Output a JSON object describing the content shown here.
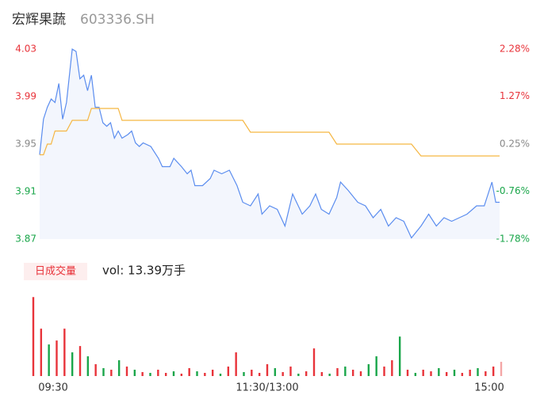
{
  "header": {
    "name": "宏辉果蔬",
    "code": "603336.SH"
  },
  "chart_data": [
    {
      "type": "line",
      "x": [
        0,
        2,
        4,
        6,
        8,
        10,
        12,
        14,
        17,
        19,
        21,
        23,
        25,
        27,
        29,
        31,
        33,
        35,
        37,
        39,
        41,
        43,
        46,
        48,
        50,
        52,
        54,
        58,
        62,
        64,
        68,
        70,
        74,
        77,
        79,
        81,
        85,
        89,
        91,
        95,
        99,
        103,
        106,
        110,
        114,
        116,
        120,
        124,
        128,
        132,
        137,
        141,
        144,
        147,
        151,
        155,
        157,
        161,
        166,
        170,
        174,
        178,
        182,
        186,
        190,
        194,
        199,
        203,
        207,
        211,
        215,
        219,
        223,
        228,
        232,
        236,
        238,
        240
      ],
      "xlim": [
        0,
        240
      ],
      "series": [
        {
          "color": "#5b8def",
          "fill": "#f3f6fd",
          "values": [
            3.941,
            3.971,
            3.981,
            3.988,
            3.985,
            4.001,
            3.971,
            3.985,
            4.03,
            4.028,
            4.005,
            4.008,
            3.995,
            4.008,
            3.981,
            3.981,
            3.968,
            3.965,
            3.968,
            3.955,
            3.961,
            3.955,
            3.958,
            3.961,
            3.951,
            3.948,
            3.951,
            3.948,
            3.938,
            3.931,
            3.931,
            3.938,
            3.931,
            3.925,
            3.928,
            3.915,
            3.915,
            3.921,
            3.928,
            3.925,
            3.928,
            3.915,
            3.901,
            3.898,
            3.908,
            3.891,
            3.898,
            3.895,
            3.881,
            3.908,
            3.891,
            3.898,
            3.908,
            3.895,
            3.891,
            3.905,
            3.918,
            3.911,
            3.901,
            3.898,
            3.888,
            3.895,
            3.881,
            3.888,
            3.885,
            3.871,
            3.881,
            3.891,
            3.881,
            3.888,
            3.885,
            3.888,
            3.891,
            3.898,
            3.898,
            3.918,
            3.901,
            3.901
          ]
        },
        {
          "color": "#f5b642",
          "values": [
            3.941,
            3.941,
            3.95,
            3.95,
            3.961,
            3.961,
            3.961,
            3.961,
            3.97,
            3.97,
            3.97,
            3.97,
            3.97,
            3.98,
            3.98,
            3.98,
            3.98,
            3.98,
            3.98,
            3.98,
            3.98,
            3.97,
            3.97,
            3.97,
            3.97,
            3.97,
            3.97,
            3.97,
            3.97,
            3.97,
            3.97,
            3.97,
            3.97,
            3.97,
            3.97,
            3.97,
            3.97,
            3.97,
            3.97,
            3.97,
            3.97,
            3.97,
            3.97,
            3.96,
            3.96,
            3.96,
            3.96,
            3.96,
            3.96,
            3.96,
            3.96,
            3.96,
            3.96,
            3.96,
            3.96,
            3.95,
            3.95,
            3.95,
            3.95,
            3.95,
            3.95,
            3.95,
            3.95,
            3.95,
            3.95,
            3.95,
            3.94,
            3.94,
            3.94,
            3.94,
            3.94,
            3.94,
            3.94,
            3.94,
            3.94,
            3.94,
            3.94,
            3.94
          ]
        }
      ],
      "ylim": [
        3.87,
        4.03
      ],
      "yticks": [
        4.03,
        3.99,
        3.95,
        3.91,
        3.87
      ],
      "ytick_colors": [
        "#e8333a",
        "#e8333a",
        "#888888",
        "#1aa64a",
        "#1aa64a"
      ],
      "y2lim": [
        -1.78,
        2.28
      ],
      "y2ticks": [
        {
          "value": 2.28,
          "label": "2.28%"
        },
        {
          "value": 1.27,
          "label": "1.27%"
        },
        {
          "value": 0.25,
          "label": "0.25%"
        },
        {
          "value": -0.76,
          "label": "-0.76%"
        },
        {
          "value": -1.78,
          "label": "-1.78%"
        }
      ]
    },
    {
      "type": "bar",
      "label": "日成交量",
      "summary": "vol: 13.39万手",
      "x": [
        0,
        4,
        8,
        12,
        16,
        20,
        24,
        28,
        32,
        36,
        40,
        44,
        48,
        52,
        56,
        60,
        64,
        68,
        72,
        76,
        80,
        84,
        88,
        92,
        96,
        100,
        104,
        108,
        112,
        116,
        120,
        124,
        128,
        132,
        136,
        140,
        144,
        148,
        152,
        156,
        160,
        164,
        168,
        172,
        176,
        180,
        184,
        188,
        192,
        196,
        200,
        204,
        208,
        212,
        216,
        220,
        224,
        228,
        232,
        236,
        240
      ],
      "xlim": [
        0,
        240
      ],
      "values": [
        9500,
        5700,
        3800,
        4275,
        5700,
        2850,
        3610,
        2375,
        1425,
        950,
        760,
        1900,
        1140,
        760,
        475,
        380,
        760,
        380,
        570,
        285,
        950,
        570,
        380,
        760,
        285,
        1140,
        2850,
        475,
        760,
        380,
        1425,
        950,
        475,
        1140,
        285,
        570,
        3325,
        475,
        285,
        950,
        1140,
        760,
        570,
        1425,
        2375,
        1140,
        1900,
        4750,
        760,
        380,
        760,
        570,
        950,
        475,
        760,
        380,
        760,
        950,
        570,
        1140,
        1710
      ],
      "colors": [
        "#e8333a",
        "#e8333a",
        "#1aa64a",
        "#e8333a",
        "#e8333a",
        "#1aa64a",
        "#e8333a",
        "#1aa64a",
        "#e8333a",
        "#1aa64a",
        "#e8333a",
        "#1aa64a",
        "#e8333a",
        "#1aa64a",
        "#e8333a",
        "#1aa64a",
        "#e8333a",
        "#e8333a",
        "#1aa64a",
        "#e8333a",
        "#e8333a",
        "#1aa64a",
        "#e8333a",
        "#e8333a",
        "#1aa64a",
        "#e8333a",
        "#e8333a",
        "#1aa64a",
        "#e8333a",
        "#e8333a",
        "#e8333a",
        "#1aa64a",
        "#e8333a",
        "#e8333a",
        "#1aa64a",
        "#e8333a",
        "#e8333a",
        "#e8333a",
        "#1aa64a",
        "#e8333a",
        "#1aa64a",
        "#e8333a",
        "#e8333a",
        "#1aa64a",
        "#1aa64a",
        "#e8333a",
        "#e8333a",
        "#1aa64a",
        "#e8333a",
        "#1aa64a",
        "#e8333a",
        "#e8333a",
        "#1aa64a",
        "#e8333a",
        "#1aa64a",
        "#e8333a",
        "#e8333a",
        "#1aa64a",
        "#e8333a",
        "#e8333a",
        "#f4a6a6"
      ],
      "ylim": [
        0,
        10000
      ],
      "xticks": [
        {
          "value": 0,
          "label": "09:30"
        },
        {
          "value": 120,
          "label": "11:30/13:00"
        },
        {
          "value": 240,
          "label": "15:00"
        }
      ]
    }
  ]
}
